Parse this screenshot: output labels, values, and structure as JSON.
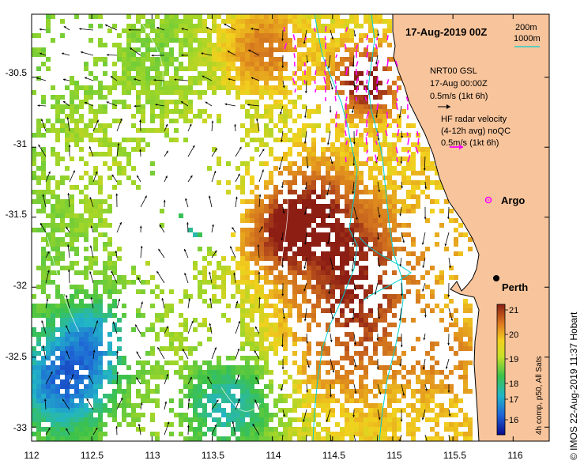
{
  "map": {
    "title": "17-Aug-2019 00Z",
    "lon_ticks": [
      "112",
      "112.5",
      "113",
      "113.5",
      "114",
      "114.5",
      "115",
      "115.5",
      "116"
    ],
    "lat_ticks": [
      "-30.5",
      "-31",
      "-31.5",
      "-32",
      "-32.5",
      "-33"
    ],
    "lon_range": [
      112,
      116.3
    ],
    "lat_range": [
      -33.1,
      -30.05
    ],
    "contour_legend": {
      "shallow": "200m",
      "deep": "1000m"
    },
    "model": {
      "name": "NRT00 GSL",
      "time": "17-Aug 00:00Z",
      "scale": "0.5m/s (1kt 6h)"
    },
    "hf_radar": {
      "line1": "HF radar velocity",
      "line2": "(4-12h avg) noQC",
      "scale": "0.5m/s (1kt 6h)"
    },
    "argo_label": "Argo",
    "city": {
      "name": "Perth",
      "lon": 115.86,
      "lat": -31.95
    },
    "colorbar": {
      "ticks": [
        "21",
        "20",
        "19",
        "18",
        "17",
        "16"
      ],
      "title": "4h comp, p50, All Sats"
    },
    "credit": "© IMOS 22-Aug-2019 11:37 Hobart",
    "colors": {
      "land": "#f8c49b",
      "coast": "#000000",
      "hf_arrow": "#ff00ff",
      "contour": "#00d0d0",
      "argo": "#ff00ff"
    }
  }
}
